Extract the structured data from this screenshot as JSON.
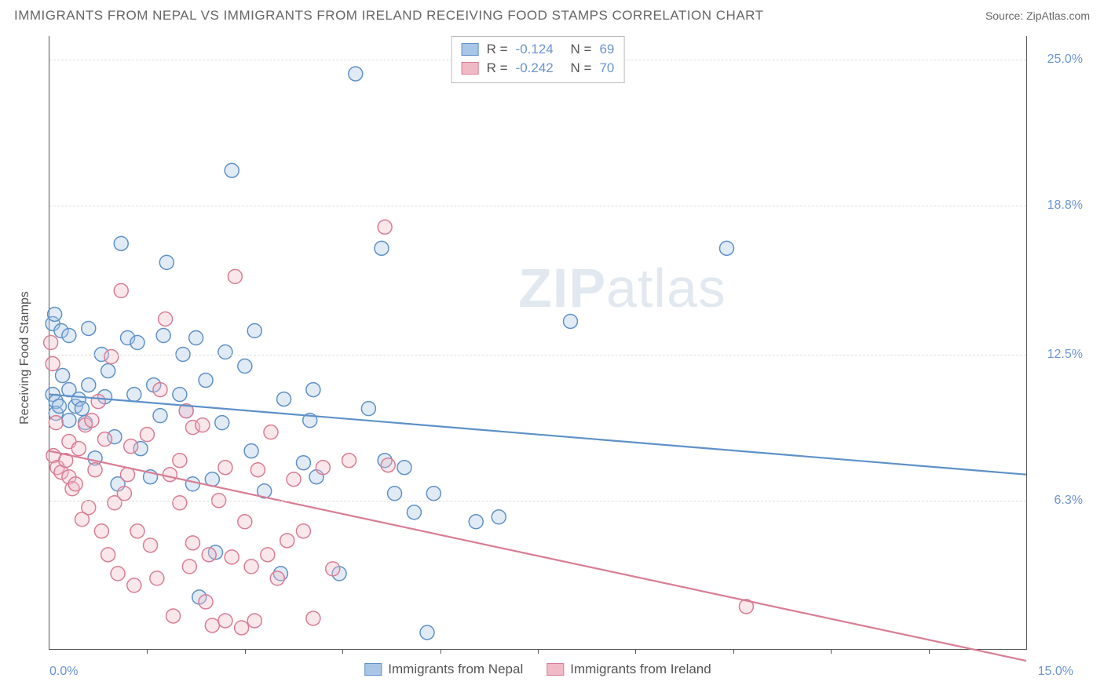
{
  "title": "IMMIGRANTS FROM NEPAL VS IMMIGRANTS FROM IRELAND RECEIVING FOOD STAMPS CORRELATION CHART",
  "source": "Source: ZipAtlas.com",
  "watermark": {
    "bold": "ZIP",
    "rest": "atlas"
  },
  "chart": {
    "type": "scatter",
    "x_label": "",
    "y_label": "Receiving Food Stamps",
    "xlim": [
      0,
      15
    ],
    "ylim": [
      0,
      26
    ],
    "x_ticks": [
      0,
      15
    ],
    "x_tick_labels": [
      "0.0%",
      "15.0%"
    ],
    "x_minor_ticks": [
      1.5,
      3.0,
      4.5,
      6.0,
      7.5,
      9.0,
      10.5,
      12.0,
      13.5
    ],
    "y_gridlines": [
      6.3,
      12.5,
      18.8,
      25.0
    ],
    "y_tick_labels": [
      "6.3%",
      "12.5%",
      "18.8%",
      "25.0%"
    ],
    "background_color": "#ffffff",
    "grid_color": "#dddddd",
    "marker_radius": 9,
    "marker_stroke_width": 1.5,
    "marker_fill_opacity": 0.35,
    "line_width": 2.2,
    "series": [
      {
        "name": "Immigrants from Nepal",
        "color_stroke": "#5e91c8",
        "color_fill": "#a9c6e6",
        "R": "-0.124",
        "N": "69",
        "trend": {
          "x1": 0,
          "y1": 10.8,
          "x2": 15,
          "y2": 7.4
        },
        "points": [
          [
            0.05,
            13.8
          ],
          [
            0.05,
            10.8
          ],
          [
            0.08,
            14.2
          ],
          [
            0.1,
            10.5
          ],
          [
            0.1,
            10.0
          ],
          [
            0.15,
            10.3
          ],
          [
            0.18,
            13.5
          ],
          [
            0.2,
            11.6
          ],
          [
            0.3,
            11.0
          ],
          [
            0.3,
            9.7
          ],
          [
            0.3,
            13.3
          ],
          [
            0.4,
            10.3
          ],
          [
            0.45,
            10.6
          ],
          [
            0.5,
            10.2
          ],
          [
            0.55,
            9.6
          ],
          [
            0.6,
            13.6
          ],
          [
            0.6,
            11.2
          ],
          [
            0.7,
            8.1
          ],
          [
            0.8,
            12.5
          ],
          [
            0.85,
            10.7
          ],
          [
            0.9,
            11.8
          ],
          [
            1.0,
            9.0
          ],
          [
            1.05,
            7.0
          ],
          [
            1.1,
            17.2
          ],
          [
            1.2,
            13.2
          ],
          [
            1.3,
            10.8
          ],
          [
            1.35,
            13.0
          ],
          [
            1.4,
            8.5
          ],
          [
            1.55,
            7.3
          ],
          [
            1.6,
            11.2
          ],
          [
            1.7,
            9.9
          ],
          [
            1.75,
            13.3
          ],
          [
            1.8,
            16.4
          ],
          [
            2.0,
            10.8
          ],
          [
            2.05,
            12.5
          ],
          [
            2.1,
            10.1
          ],
          [
            2.2,
            7.0
          ],
          [
            2.25,
            13.2
          ],
          [
            2.3,
            2.2
          ],
          [
            2.4,
            11.4
          ],
          [
            2.5,
            7.2
          ],
          [
            2.55,
            4.1
          ],
          [
            2.65,
            9.6
          ],
          [
            2.7,
            12.6
          ],
          [
            2.8,
            20.3
          ],
          [
            3.0,
            12.0
          ],
          [
            3.1,
            8.4
          ],
          [
            3.15,
            13.5
          ],
          [
            3.3,
            6.7
          ],
          [
            3.55,
            3.2
          ],
          [
            3.6,
            10.6
          ],
          [
            3.9,
            7.9
          ],
          [
            4.0,
            9.7
          ],
          [
            4.05,
            11.0
          ],
          [
            4.1,
            7.3
          ],
          [
            4.45,
            3.2
          ],
          [
            4.7,
            24.4
          ],
          [
            4.9,
            10.2
          ],
          [
            5.1,
            17.0
          ],
          [
            5.15,
            8.0
          ],
          [
            5.3,
            6.6
          ],
          [
            5.45,
            7.7
          ],
          [
            5.6,
            5.8
          ],
          [
            5.8,
            0.7
          ],
          [
            5.9,
            6.6
          ],
          [
            6.55,
            5.4
          ],
          [
            6.9,
            5.6
          ],
          [
            10.4,
            17.0
          ],
          [
            8.0,
            13.9
          ]
        ]
      },
      {
        "name": "Immigrants from Ireland",
        "color_stroke": "#d97d94",
        "color_fill": "#f0b9c6",
        "R": "-0.242",
        "N": "70",
        "trend": {
          "x1": 0,
          "y1": 8.4,
          "x2": 15,
          "y2": -0.5
        },
        "points": [
          [
            0.02,
            13.0
          ],
          [
            0.05,
            12.1
          ],
          [
            0.06,
            8.2
          ],
          [
            0.1,
            9.6
          ],
          [
            0.12,
            7.7
          ],
          [
            0.18,
            7.5
          ],
          [
            0.25,
            8.0
          ],
          [
            0.3,
            8.8
          ],
          [
            0.3,
            7.3
          ],
          [
            0.35,
            6.8
          ],
          [
            0.4,
            7.0
          ],
          [
            0.45,
            8.5
          ],
          [
            0.5,
            5.5
          ],
          [
            0.55,
            9.5
          ],
          [
            0.6,
            6.0
          ],
          [
            0.65,
            9.7
          ],
          [
            0.7,
            7.6
          ],
          [
            0.75,
            10.5
          ],
          [
            0.8,
            5.0
          ],
          [
            0.85,
            8.9
          ],
          [
            0.9,
            4.0
          ],
          [
            0.95,
            12.4
          ],
          [
            1.0,
            6.2
          ],
          [
            1.05,
            3.2
          ],
          [
            1.1,
            15.2
          ],
          [
            1.15,
            6.6
          ],
          [
            1.2,
            7.4
          ],
          [
            1.25,
            8.6
          ],
          [
            1.3,
            2.7
          ],
          [
            1.35,
            5.0
          ],
          [
            1.5,
            9.1
          ],
          [
            1.55,
            4.4
          ],
          [
            1.65,
            3.0
          ],
          [
            1.7,
            11.0
          ],
          [
            1.78,
            14.0
          ],
          [
            1.85,
            7.4
          ],
          [
            1.9,
            1.4
          ],
          [
            2.0,
            8.0
          ],
          [
            2.0,
            6.2
          ],
          [
            2.1,
            10.1
          ],
          [
            2.15,
            3.5
          ],
          [
            2.2,
            9.4
          ],
          [
            2.2,
            4.5
          ],
          [
            2.35,
            9.5
          ],
          [
            2.4,
            2.0
          ],
          [
            2.45,
            4.0
          ],
          [
            2.5,
            1.0
          ],
          [
            2.6,
            6.3
          ],
          [
            2.7,
            7.7
          ],
          [
            2.7,
            1.2
          ],
          [
            2.8,
            3.9
          ],
          [
            2.85,
            15.8
          ],
          [
            2.95,
            0.9
          ],
          [
            3.0,
            5.4
          ],
          [
            3.1,
            3.5
          ],
          [
            3.15,
            1.2
          ],
          [
            3.2,
            7.6
          ],
          [
            3.35,
            4.0
          ],
          [
            3.4,
            9.2
          ],
          [
            3.5,
            3.0
          ],
          [
            3.65,
            4.6
          ],
          [
            3.75,
            7.2
          ],
          [
            3.9,
            5.0
          ],
          [
            4.05,
            1.3
          ],
          [
            4.2,
            7.7
          ],
          [
            4.35,
            3.4
          ],
          [
            4.6,
            8.0
          ],
          [
            5.15,
            17.9
          ],
          [
            5.2,
            7.8
          ],
          [
            10.7,
            1.8
          ]
        ]
      }
    ],
    "legend_top_rows": [
      {
        "swatch_fill": "#a9c6e6",
        "swatch_stroke": "#5e91c8",
        "r_label": "R =",
        "r_val": "-0.124",
        "n_label": "N =",
        "n_val": "69"
      },
      {
        "swatch_fill": "#f0b9c6",
        "swatch_stroke": "#d97d94",
        "r_label": "R =",
        "r_val": "-0.242",
        "n_label": "N =",
        "n_val": "70"
      }
    ],
    "legend_bottom": [
      {
        "swatch_fill": "#a9c6e6",
        "swatch_stroke": "#5e91c8",
        "label": "Immigrants from Nepal"
      },
      {
        "swatch_fill": "#f0b9c6",
        "swatch_stroke": "#d97d94",
        "label": "Immigrants from Ireland"
      }
    ]
  }
}
